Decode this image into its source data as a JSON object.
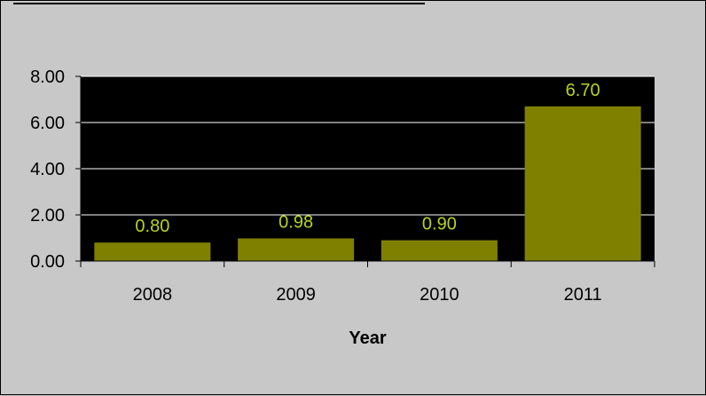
{
  "chart_data": {
    "type": "bar",
    "categories": [
      "2008",
      "2009",
      "2010",
      "2011"
    ],
    "values": [
      0.8,
      0.98,
      0.9,
      6.7
    ],
    "data_labels": [
      "0.80",
      "0.98",
      "0.90",
      "6.70"
    ],
    "xlabel": "Year",
    "ylabel": "",
    "ylim": [
      0,
      8
    ],
    "yticks": [
      0,
      2,
      4,
      6,
      8
    ],
    "ytick_labels": [
      "0.00",
      "2.00",
      "4.00",
      "6.00",
      "8.00"
    ],
    "grid": true,
    "legend": "none",
    "colors": {
      "bar": "#808000",
      "plot_background": "#000000",
      "page_background": "#c8c8c8",
      "data_label": "#b5d320",
      "gridline": "#ffffff"
    }
  }
}
